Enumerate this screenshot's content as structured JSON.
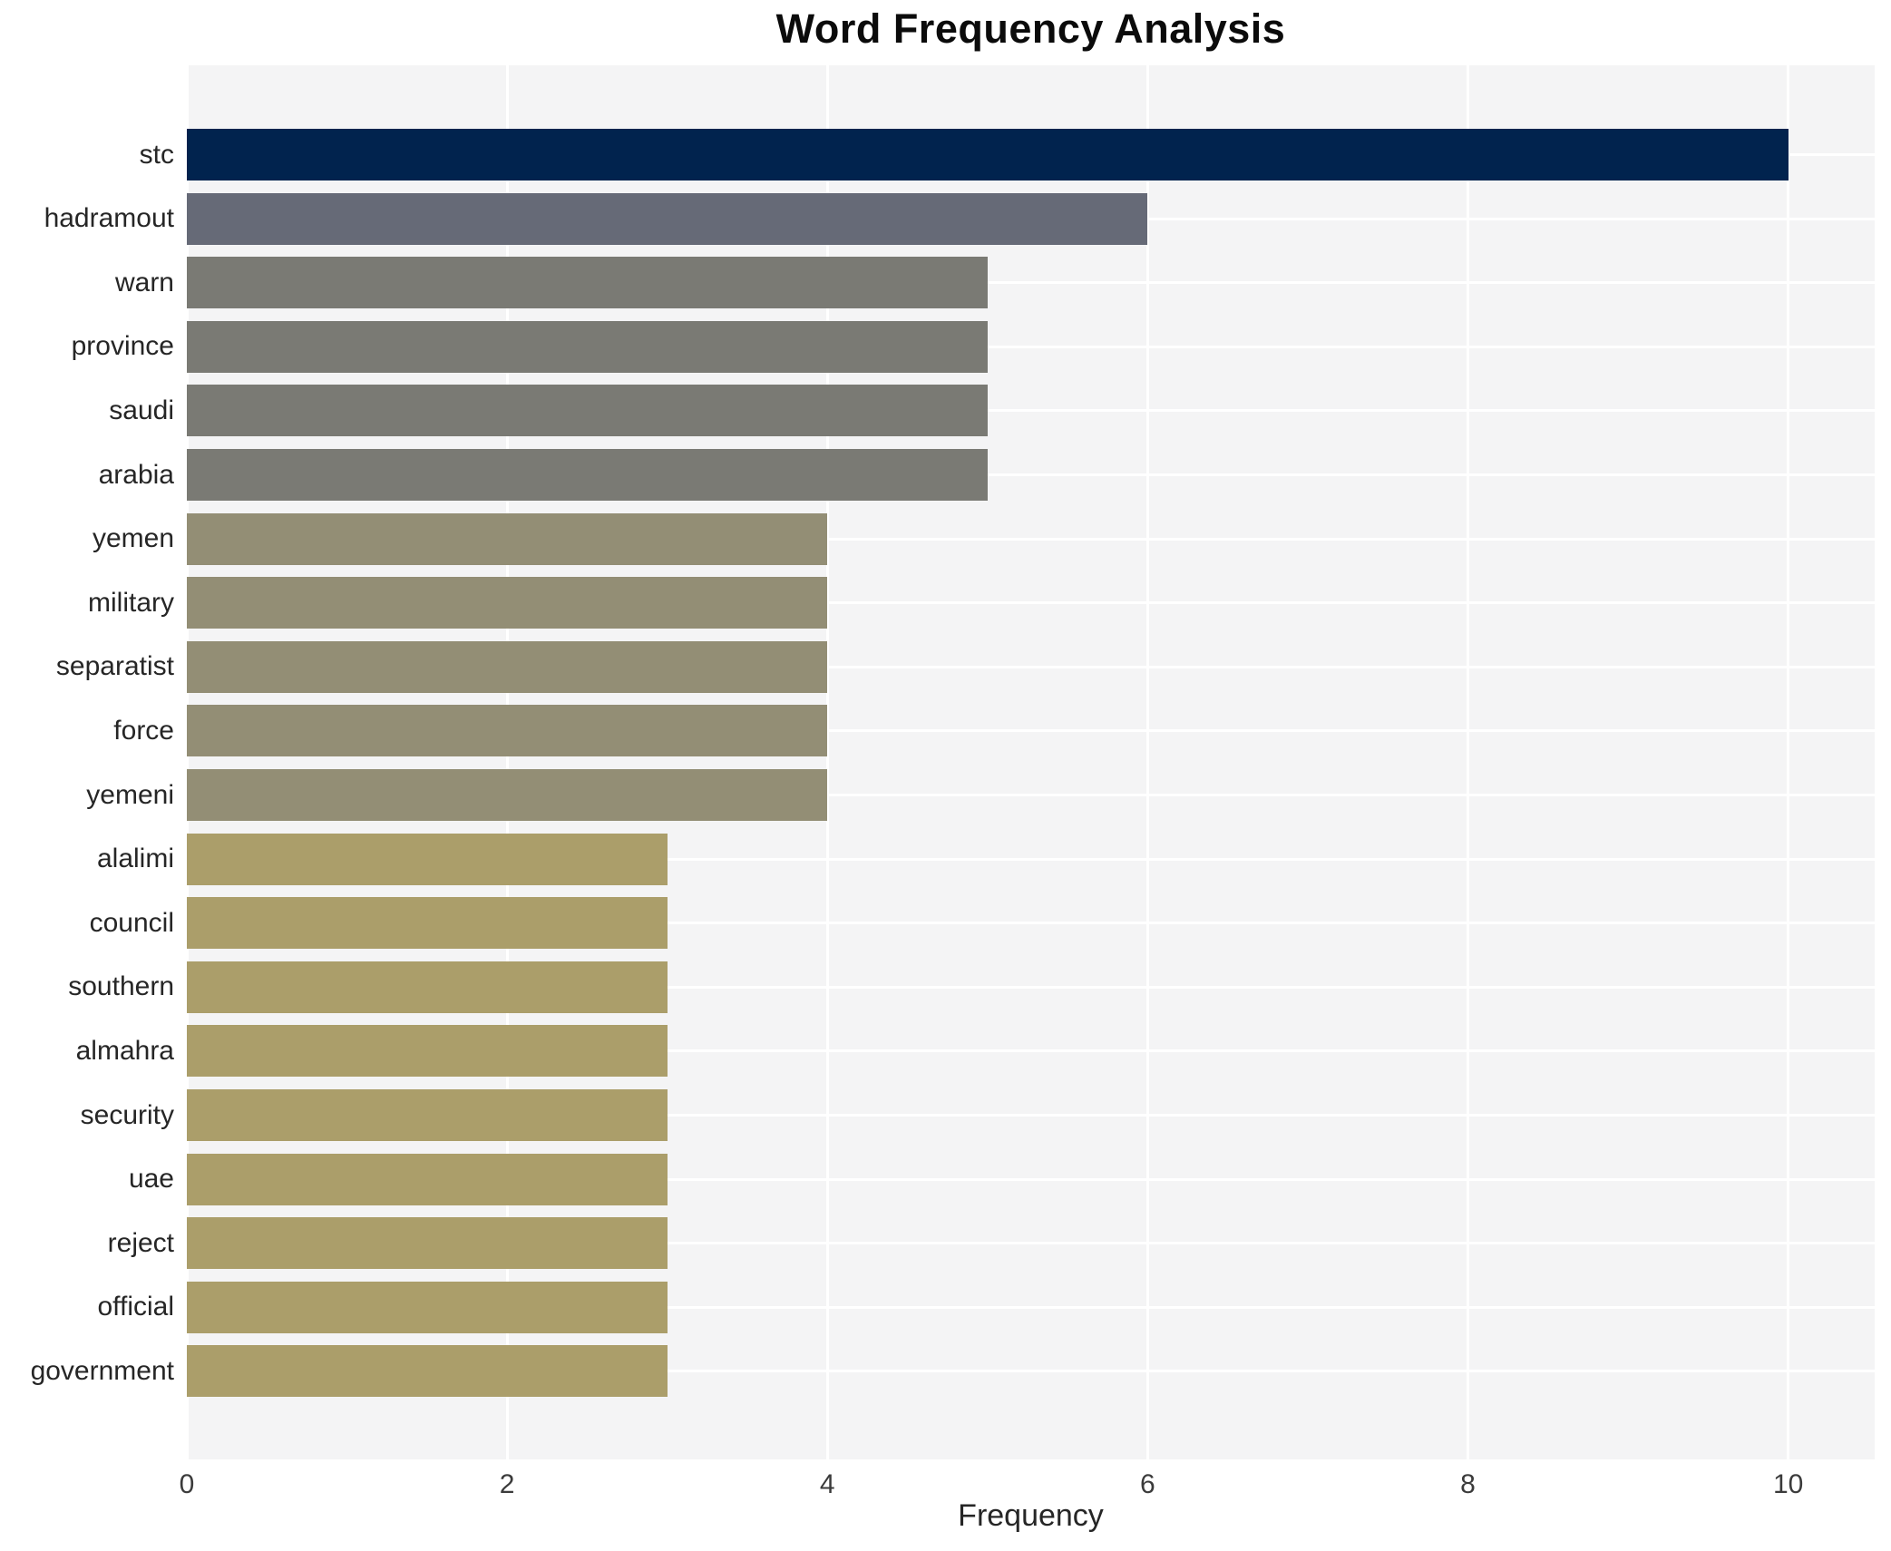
{
  "title": "Word Frequency Analysis",
  "chart_data": {
    "type": "bar",
    "orientation": "horizontal",
    "title": "Word Frequency Analysis",
    "xlabel": "Frequency",
    "ylabel": "",
    "categories": [
      "stc",
      "hadramout",
      "warn",
      "province",
      "saudi",
      "arabia",
      "yemen",
      "military",
      "separatist",
      "force",
      "yemeni",
      "alalimi",
      "council",
      "southern",
      "almahra",
      "security",
      "uae",
      "reject",
      "official",
      "government"
    ],
    "values": [
      10,
      6,
      5,
      5,
      5,
      5,
      4,
      4,
      4,
      4,
      4,
      3,
      3,
      3,
      3,
      3,
      3,
      3,
      3,
      3
    ],
    "bar_colors": [
      "#01234e",
      "#666a77",
      "#7a7a74",
      "#7a7a74",
      "#7a7a74",
      "#7a7a74",
      "#938e75",
      "#938e75",
      "#938e75",
      "#938e75",
      "#938e75",
      "#ab9e6a",
      "#ab9e6a",
      "#ab9e6a",
      "#ab9e6a",
      "#ab9e6a",
      "#ab9e6a",
      "#ab9e6a",
      "#ab9e6a",
      "#ab9e6a"
    ],
    "x_ticks": [
      0,
      2,
      4,
      6,
      8,
      10
    ],
    "xlim": [
      0,
      10.54
    ],
    "grid": "on",
    "legend": "none",
    "plot_bg_color": "#f4f4f5",
    "gridline_color": "#ffffff",
    "title_color": "#0b0b0b",
    "label_color": "#262626",
    "tick_color": "#3b3b3b"
  },
  "layout_note": "word frequency horizontal bar chart"
}
